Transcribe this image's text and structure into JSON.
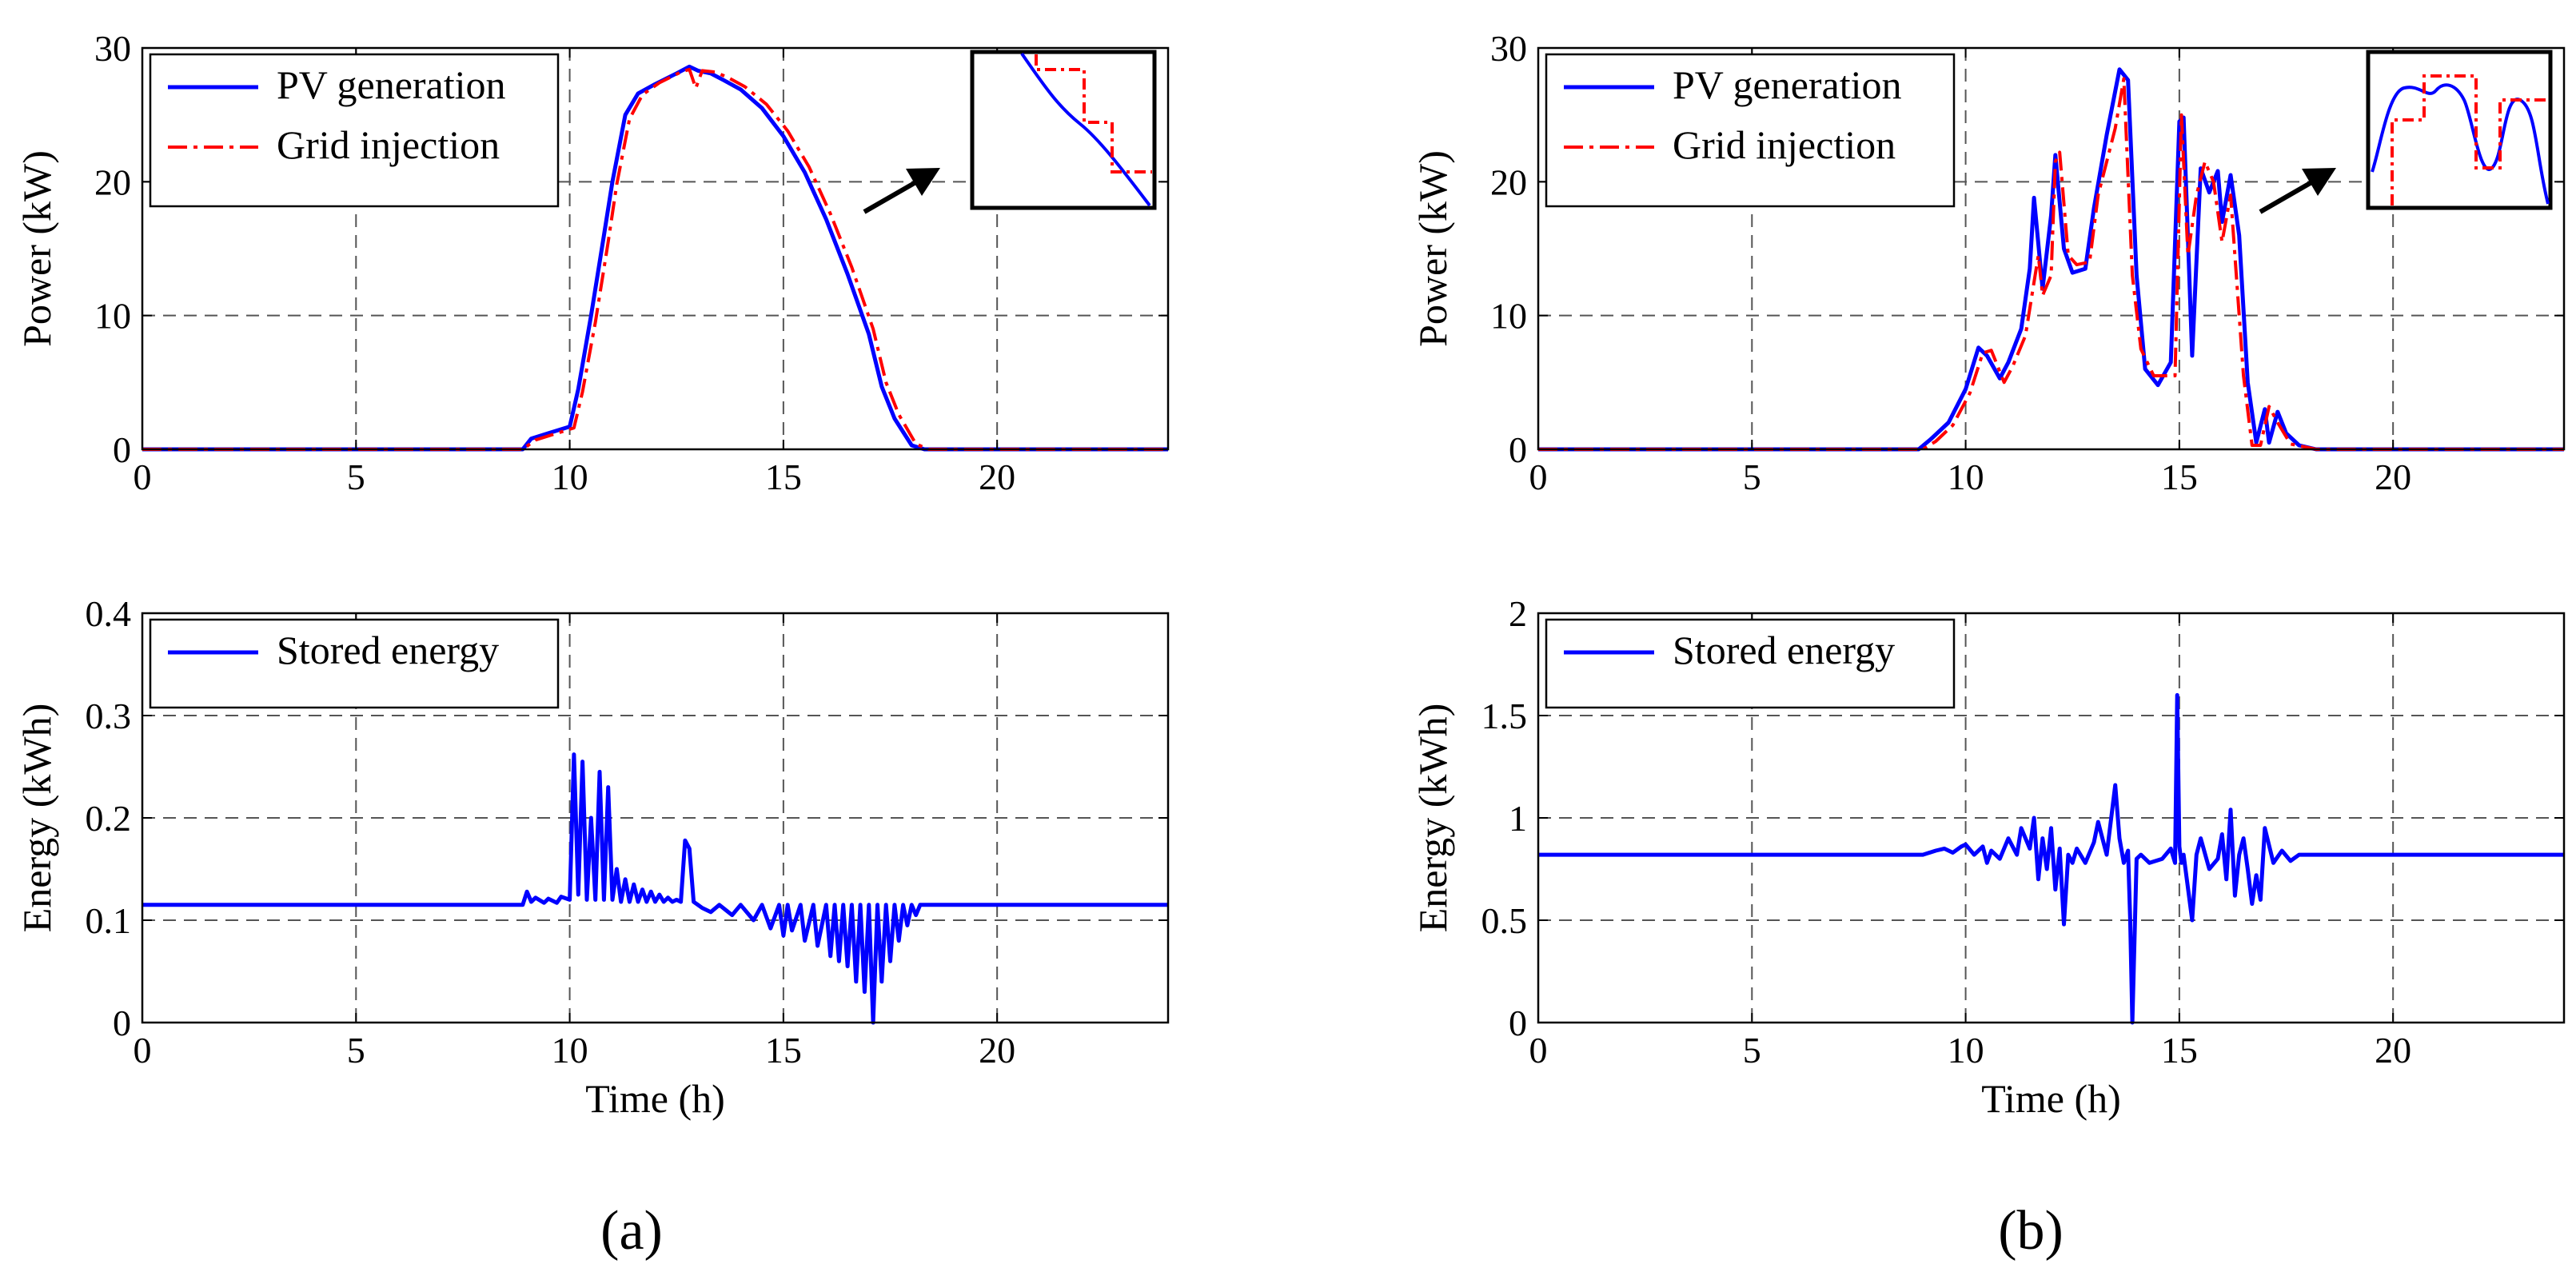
{
  "chart_data": [
    {
      "id": "a_top",
      "type": "line",
      "panel": "a",
      "xlabel": "",
      "ylabel": "Power (kW)",
      "xlim": [
        0,
        24
      ],
      "ylim": [
        0,
        30
      ],
      "xticks": [
        0,
        5,
        10,
        15,
        20
      ],
      "yticks": [
        0,
        10,
        20,
        30
      ],
      "grid": true,
      "legend_position": "top-left",
      "series": [
        {
          "name": "PV generation",
          "style": "solid",
          "color": "#0000ff",
          "x": [
            0,
            8.9,
            9.1,
            9.5,
            10.0,
            10.2,
            10.5,
            10.8,
            11.0,
            11.3,
            11.6,
            12.0,
            12.5,
            12.8,
            13.0,
            13.3,
            13.6,
            14.0,
            14.5,
            15.0,
            15.5,
            16.0,
            16.5,
            17.0,
            17.3,
            17.6,
            18.0,
            18.3,
            24
          ],
          "y": [
            0,
            0,
            0.8,
            1.2,
            1.7,
            4.5,
            10.0,
            16.0,
            20.0,
            25.0,
            26.6,
            27.3,
            28.1,
            28.6,
            28.3,
            28.1,
            27.6,
            26.9,
            25.5,
            23.4,
            20.7,
            17.2,
            13.1,
            8.6,
            4.7,
            2.3,
            0.3,
            0,
            0
          ]
        },
        {
          "name": "Grid injection",
          "style": "dashdot",
          "color": "#ff0000",
          "x": [
            0,
            8.9,
            9.2,
            9.6,
            10.1,
            10.3,
            10.6,
            10.9,
            11.1,
            11.4,
            11.7,
            12.1,
            12.6,
            12.8,
            12.95,
            13.1,
            13.4,
            13.7,
            14.1,
            14.6,
            15.1,
            15.6,
            16.1,
            16.6,
            17.1,
            17.4,
            17.7,
            18.1,
            18.4,
            24
          ],
          "y": [
            0,
            0,
            0.7,
            1.1,
            1.6,
            4.3,
            9.5,
            15.5,
            19.8,
            24.7,
            26.5,
            27.4,
            28.2,
            28.4,
            27.0,
            28.3,
            28.2,
            27.8,
            27.1,
            25.8,
            23.8,
            21.1,
            17.6,
            13.6,
            9.0,
            5.0,
            2.6,
            0.4,
            0,
            0
          ]
        }
      ],
      "inset": "zoom-in",
      "arrow": true
    },
    {
      "id": "a_bottom",
      "type": "line",
      "panel": "a",
      "xlabel": "Time (h)",
      "ylabel": "Energy (kWh)",
      "xlim": [
        0,
        24
      ],
      "ylim": [
        0,
        0.4
      ],
      "xticks": [
        0,
        5,
        10,
        15,
        20
      ],
      "yticks": [
        0,
        0.1,
        0.2,
        0.3,
        0.4
      ],
      "grid": true,
      "legend_position": "top-left",
      "series": [
        {
          "name": "Stored energy",
          "style": "solid",
          "color": "#0000ff",
          "x": [
            0,
            8.9,
            9.0,
            9.1,
            9.2,
            9.4,
            9.5,
            9.7,
            9.8,
            10.0,
            10.1,
            10.2,
            10.3,
            10.4,
            10.5,
            10.6,
            10.7,
            10.8,
            10.9,
            11.0,
            11.1,
            11.2,
            11.3,
            11.4,
            11.5,
            11.6,
            11.7,
            11.8,
            11.9,
            12.0,
            12.1,
            12.2,
            12.3,
            12.4,
            12.5,
            12.6,
            12.7,
            12.8,
            12.9,
            13.0,
            13.1,
            13.3,
            13.5,
            13.8,
            14.0,
            14.3,
            14.5,
            14.7,
            14.9,
            15.0,
            15.1,
            15.2,
            15.4,
            15.5,
            15.7,
            15.8,
            16.0,
            16.1,
            16.2,
            16.3,
            16.4,
            16.5,
            16.6,
            16.7,
            16.8,
            16.9,
            17.0,
            17.1,
            17.2,
            17.3,
            17.4,
            17.5,
            17.6,
            17.7,
            17.8,
            17.9,
            18.0,
            18.1,
            18.2,
            24
          ],
          "y": [
            0.115,
            0.115,
            0.128,
            0.118,
            0.122,
            0.117,
            0.121,
            0.117,
            0.123,
            0.12,
            0.262,
            0.125,
            0.255,
            0.12,
            0.2,
            0.12,
            0.245,
            0.12,
            0.23,
            0.12,
            0.15,
            0.118,
            0.14,
            0.118,
            0.135,
            0.118,
            0.13,
            0.118,
            0.128,
            0.118,
            0.125,
            0.118,
            0.122,
            0.118,
            0.12,
            0.118,
            0.178,
            0.17,
            0.118,
            0.115,
            0.112,
            0.108,
            0.115,
            0.105,
            0.115,
            0.1,
            0.115,
            0.092,
            0.115,
            0.085,
            0.115,
            0.09,
            0.115,
            0.08,
            0.115,
            0.075,
            0.115,
            0.065,
            0.115,
            0.06,
            0.115,
            0.055,
            0.115,
            0.04,
            0.115,
            0.03,
            0.115,
            0.0,
            0.115,
            0.04,
            0.115,
            0.06,
            0.115,
            0.08,
            0.115,
            0.095,
            0.115,
            0.105,
            0.115,
            0.115
          ]
        }
      ]
    },
    {
      "id": "b_top",
      "type": "line",
      "panel": "b",
      "xlabel": "",
      "ylabel": "Power (kW)",
      "xlim": [
        0,
        24
      ],
      "ylim": [
        0,
        30
      ],
      "xticks": [
        0,
        5,
        10,
        15,
        20
      ],
      "yticks": [
        0,
        10,
        20,
        30
      ],
      "grid": true,
      "legend_position": "top-left",
      "series": [
        {
          "name": "PV generation",
          "style": "solid",
          "color": "#0000ff",
          "x": [
            0,
            8.9,
            9.2,
            9.6,
            10.0,
            10.3,
            10.5,
            10.8,
            11.0,
            11.3,
            11.5,
            11.6,
            11.8,
            12.0,
            12.1,
            12.3,
            12.5,
            12.8,
            13.0,
            13.3,
            13.6,
            13.8,
            14.0,
            14.2,
            14.5,
            14.8,
            15.0,
            15.1,
            15.3,
            15.5,
            15.7,
            15.9,
            16.0,
            16.2,
            16.4,
            16.6,
            16.8,
            17.0,
            17.1,
            17.3,
            17.5,
            17.8,
            18.2,
            24
          ],
          "y": [
            0,
            0,
            0.8,
            2.0,
            4.5,
            7.6,
            7.0,
            5.3,
            6.5,
            9.0,
            13.5,
            18.8,
            12.0,
            17.5,
            22.0,
            15.0,
            13.2,
            13.5,
            18.0,
            23.5,
            28.4,
            27.6,
            13.0,
            6.0,
            4.8,
            6.5,
            24.5,
            24.8,
            7.0,
            21.0,
            19.2,
            20.8,
            17.0,
            20.5,
            16.0,
            5.0,
            0.5,
            3.0,
            0.5,
            2.8,
            1.2,
            0.3,
            0,
            0
          ]
        },
        {
          "name": "Grid injection",
          "style": "dashdot",
          "color": "#ff0000",
          "x": [
            0,
            9.0,
            9.3,
            9.7,
            10.1,
            10.4,
            10.6,
            10.9,
            11.1,
            11.4,
            11.7,
            11.8,
            12.0,
            12.1,
            12.2,
            12.4,
            12.6,
            12.9,
            13.1,
            13.5,
            13.7,
            13.9,
            14.1,
            14.4,
            14.9,
            15.05,
            15.2,
            15.4,
            15.6,
            15.8,
            16.0,
            16.2,
            16.5,
            16.7,
            16.9,
            17.1,
            17.3,
            17.6,
            18.2,
            24
          ],
          "y": [
            0,
            0,
            0.6,
            1.8,
            4.2,
            7.2,
            7.4,
            5.0,
            6.2,
            8.5,
            14.5,
            11.5,
            13.0,
            21.5,
            22.2,
            14.5,
            13.8,
            14.0,
            19.0,
            24.0,
            27.7,
            13.0,
            7.5,
            5.5,
            5.5,
            25.0,
            14.5,
            19.0,
            21.5,
            20.0,
            15.5,
            19.0,
            5.5,
            0.3,
            0.3,
            3.2,
            2.0,
            0.4,
            0,
            0
          ]
        }
      ],
      "inset": "zoom-in",
      "arrow": true
    },
    {
      "id": "b_bottom",
      "type": "line",
      "panel": "b",
      "xlabel": "Time (h)",
      "ylabel": "Energy (kWh)",
      "xlim": [
        0,
        24
      ],
      "ylim": [
        0,
        2
      ],
      "xticks": [
        0,
        5,
        10,
        15,
        20
      ],
      "yticks": [
        0,
        0.5,
        1,
        1.5,
        2
      ],
      "grid": true,
      "legend_position": "top-left",
      "series": [
        {
          "name": "Stored energy",
          "style": "solid",
          "color": "#0000ff",
          "x": [
            0,
            9.0,
            9.3,
            9.5,
            9.7,
            9.9,
            10.0,
            10.2,
            10.4,
            10.5,
            10.6,
            10.8,
            11.0,
            11.2,
            11.3,
            11.5,
            11.6,
            11.7,
            11.8,
            11.9,
            12.0,
            12.1,
            12.2,
            12.3,
            12.4,
            12.5,
            12.6,
            12.8,
            13.0,
            13.1,
            13.3,
            13.5,
            13.6,
            13.7,
            13.8,
            13.85,
            13.9,
            14.0,
            14.1,
            14.3,
            14.6,
            14.8,
            14.9,
            14.95,
            15.0,
            15.05,
            15.1,
            15.3,
            15.4,
            15.5,
            15.7,
            15.9,
            16.0,
            16.1,
            16.2,
            16.3,
            16.4,
            16.5,
            16.6,
            16.7,
            16.8,
            16.9,
            17.0,
            17.2,
            17.4,
            17.6,
            17.8,
            18.0,
            24
          ],
          "y": [
            0.82,
            0.82,
            0.84,
            0.85,
            0.83,
            0.86,
            0.87,
            0.82,
            0.86,
            0.78,
            0.84,
            0.8,
            0.9,
            0.82,
            0.95,
            0.85,
            1.0,
            0.7,
            0.9,
            0.75,
            0.95,
            0.65,
            0.85,
            0.48,
            0.82,
            0.78,
            0.85,
            0.78,
            0.88,
            0.98,
            0.82,
            1.16,
            0.9,
            0.78,
            0.84,
            0.5,
            0.0,
            0.8,
            0.82,
            0.78,
            0.8,
            0.85,
            0.78,
            1.6,
            0.86,
            0.78,
            0.82,
            0.5,
            0.82,
            0.9,
            0.75,
            0.8,
            0.92,
            0.7,
            1.04,
            0.62,
            0.82,
            0.9,
            0.75,
            0.58,
            0.72,
            0.6,
            0.95,
            0.78,
            0.84,
            0.79,
            0.82,
            0.82,
            0.82
          ]
        }
      ]
    }
  ],
  "panel_labels": [
    "(a)",
    "(b)"
  ]
}
